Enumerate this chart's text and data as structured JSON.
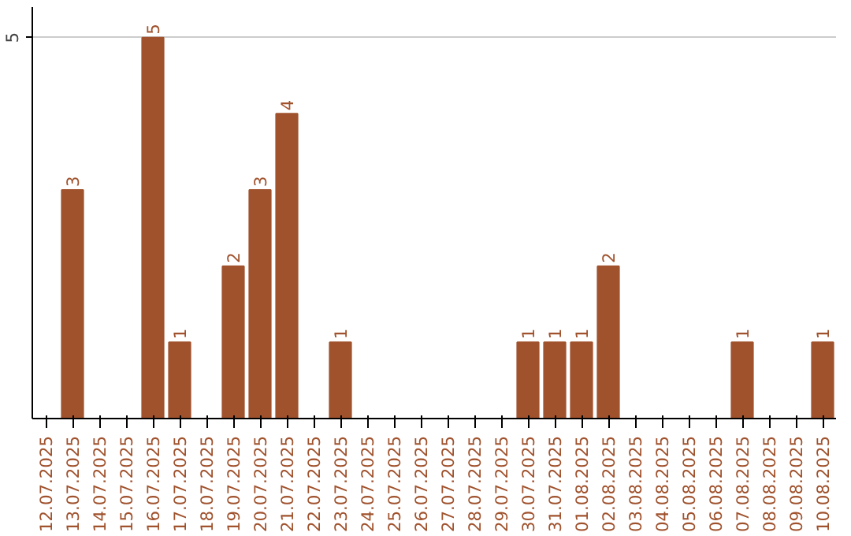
{
  "chart_data": {
    "type": "bar",
    "categories": [
      "12.07.2025",
      "13.07.2025",
      "14.07.2025",
      "15.07.2025",
      "16.07.2025",
      "17.07.2025",
      "18.07.2025",
      "19.07.2025",
      "20.07.2025",
      "21.07.2025",
      "22.07.2025",
      "23.07.2025",
      "24.07.2025",
      "25.07.2025",
      "26.07.2025",
      "27.07.2025",
      "28.07.2025",
      "29.07.2025",
      "30.07.2025",
      "31.07.2025",
      "01.08.2025",
      "02.08.2025",
      "03.08.2025",
      "04.08.2025",
      "05.08.2025",
      "06.08.2025",
      "07.08.2025",
      "08.08.2025",
      "09.08.2025",
      "10.08.2025"
    ],
    "values": [
      0,
      3,
      0,
      0,
      5,
      1,
      0,
      2,
      3,
      4,
      0,
      1,
      0,
      0,
      0,
      0,
      0,
      0,
      1,
      1,
      1,
      2,
      0,
      0,
      0,
      0,
      1,
      0,
      0,
      1
    ],
    "value_labels": [
      null,
      "3",
      null,
      null,
      "5",
      "1",
      null,
      "2",
      "3",
      "4",
      null,
      "1",
      null,
      null,
      null,
      null,
      null,
      null,
      "1",
      "1",
      "1",
      "2",
      null,
      null,
      null,
      null,
      "1",
      null,
      null,
      "1"
    ],
    "color": "#a0522d",
    "ylim": [
      0,
      5.4
    ],
    "yticks": [
      5
    ],
    "grid": "y"
  }
}
